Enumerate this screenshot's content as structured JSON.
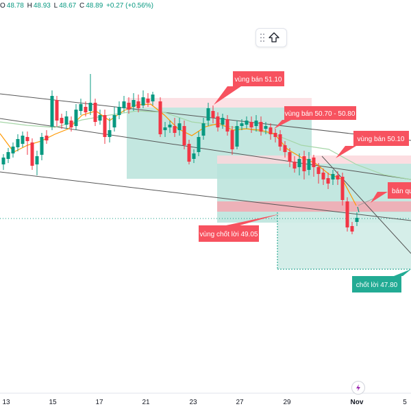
{
  "header": {
    "open_key": "O",
    "open_val": "48.78",
    "high_key": "H",
    "high_val": "48.93",
    "low_key": "L",
    "low_val": "48.67",
    "close_key": "C",
    "close_val": "48.89",
    "change_val": "+0.27 (+0.56%)"
  },
  "toolbar": {
    "grip_icon": "drag-handle-icon",
    "up_icon": "arrow-up-outline-icon"
  },
  "annotations": {
    "sell_51": "vùng bán 51.10",
    "sell_5070": "vùng bán 50.70 - 50.80",
    "sell_50": "vùng bán 50.10",
    "sell_right": "bán qua",
    "tp_4905": "vùng chốt lời 49.05",
    "tp_4780": "chốt lời 47.80"
  },
  "x_axis": {
    "labels": [
      "13",
      "15",
      "17",
      "21",
      "23",
      "27",
      "29",
      "Nov",
      "5"
    ]
  },
  "footer": {
    "flash_icon": "lightning-icon"
  },
  "colors": {
    "up": "#089981",
    "down": "#f23645",
    "label_red": "#f7525f",
    "label_teal": "#22ab94",
    "zone_green": "#b2dfdb",
    "zone_red": "#f8bbd0",
    "ma_orange": "#ff9800",
    "ma_green": "#81c784",
    "trend": "#5d606b"
  }
}
